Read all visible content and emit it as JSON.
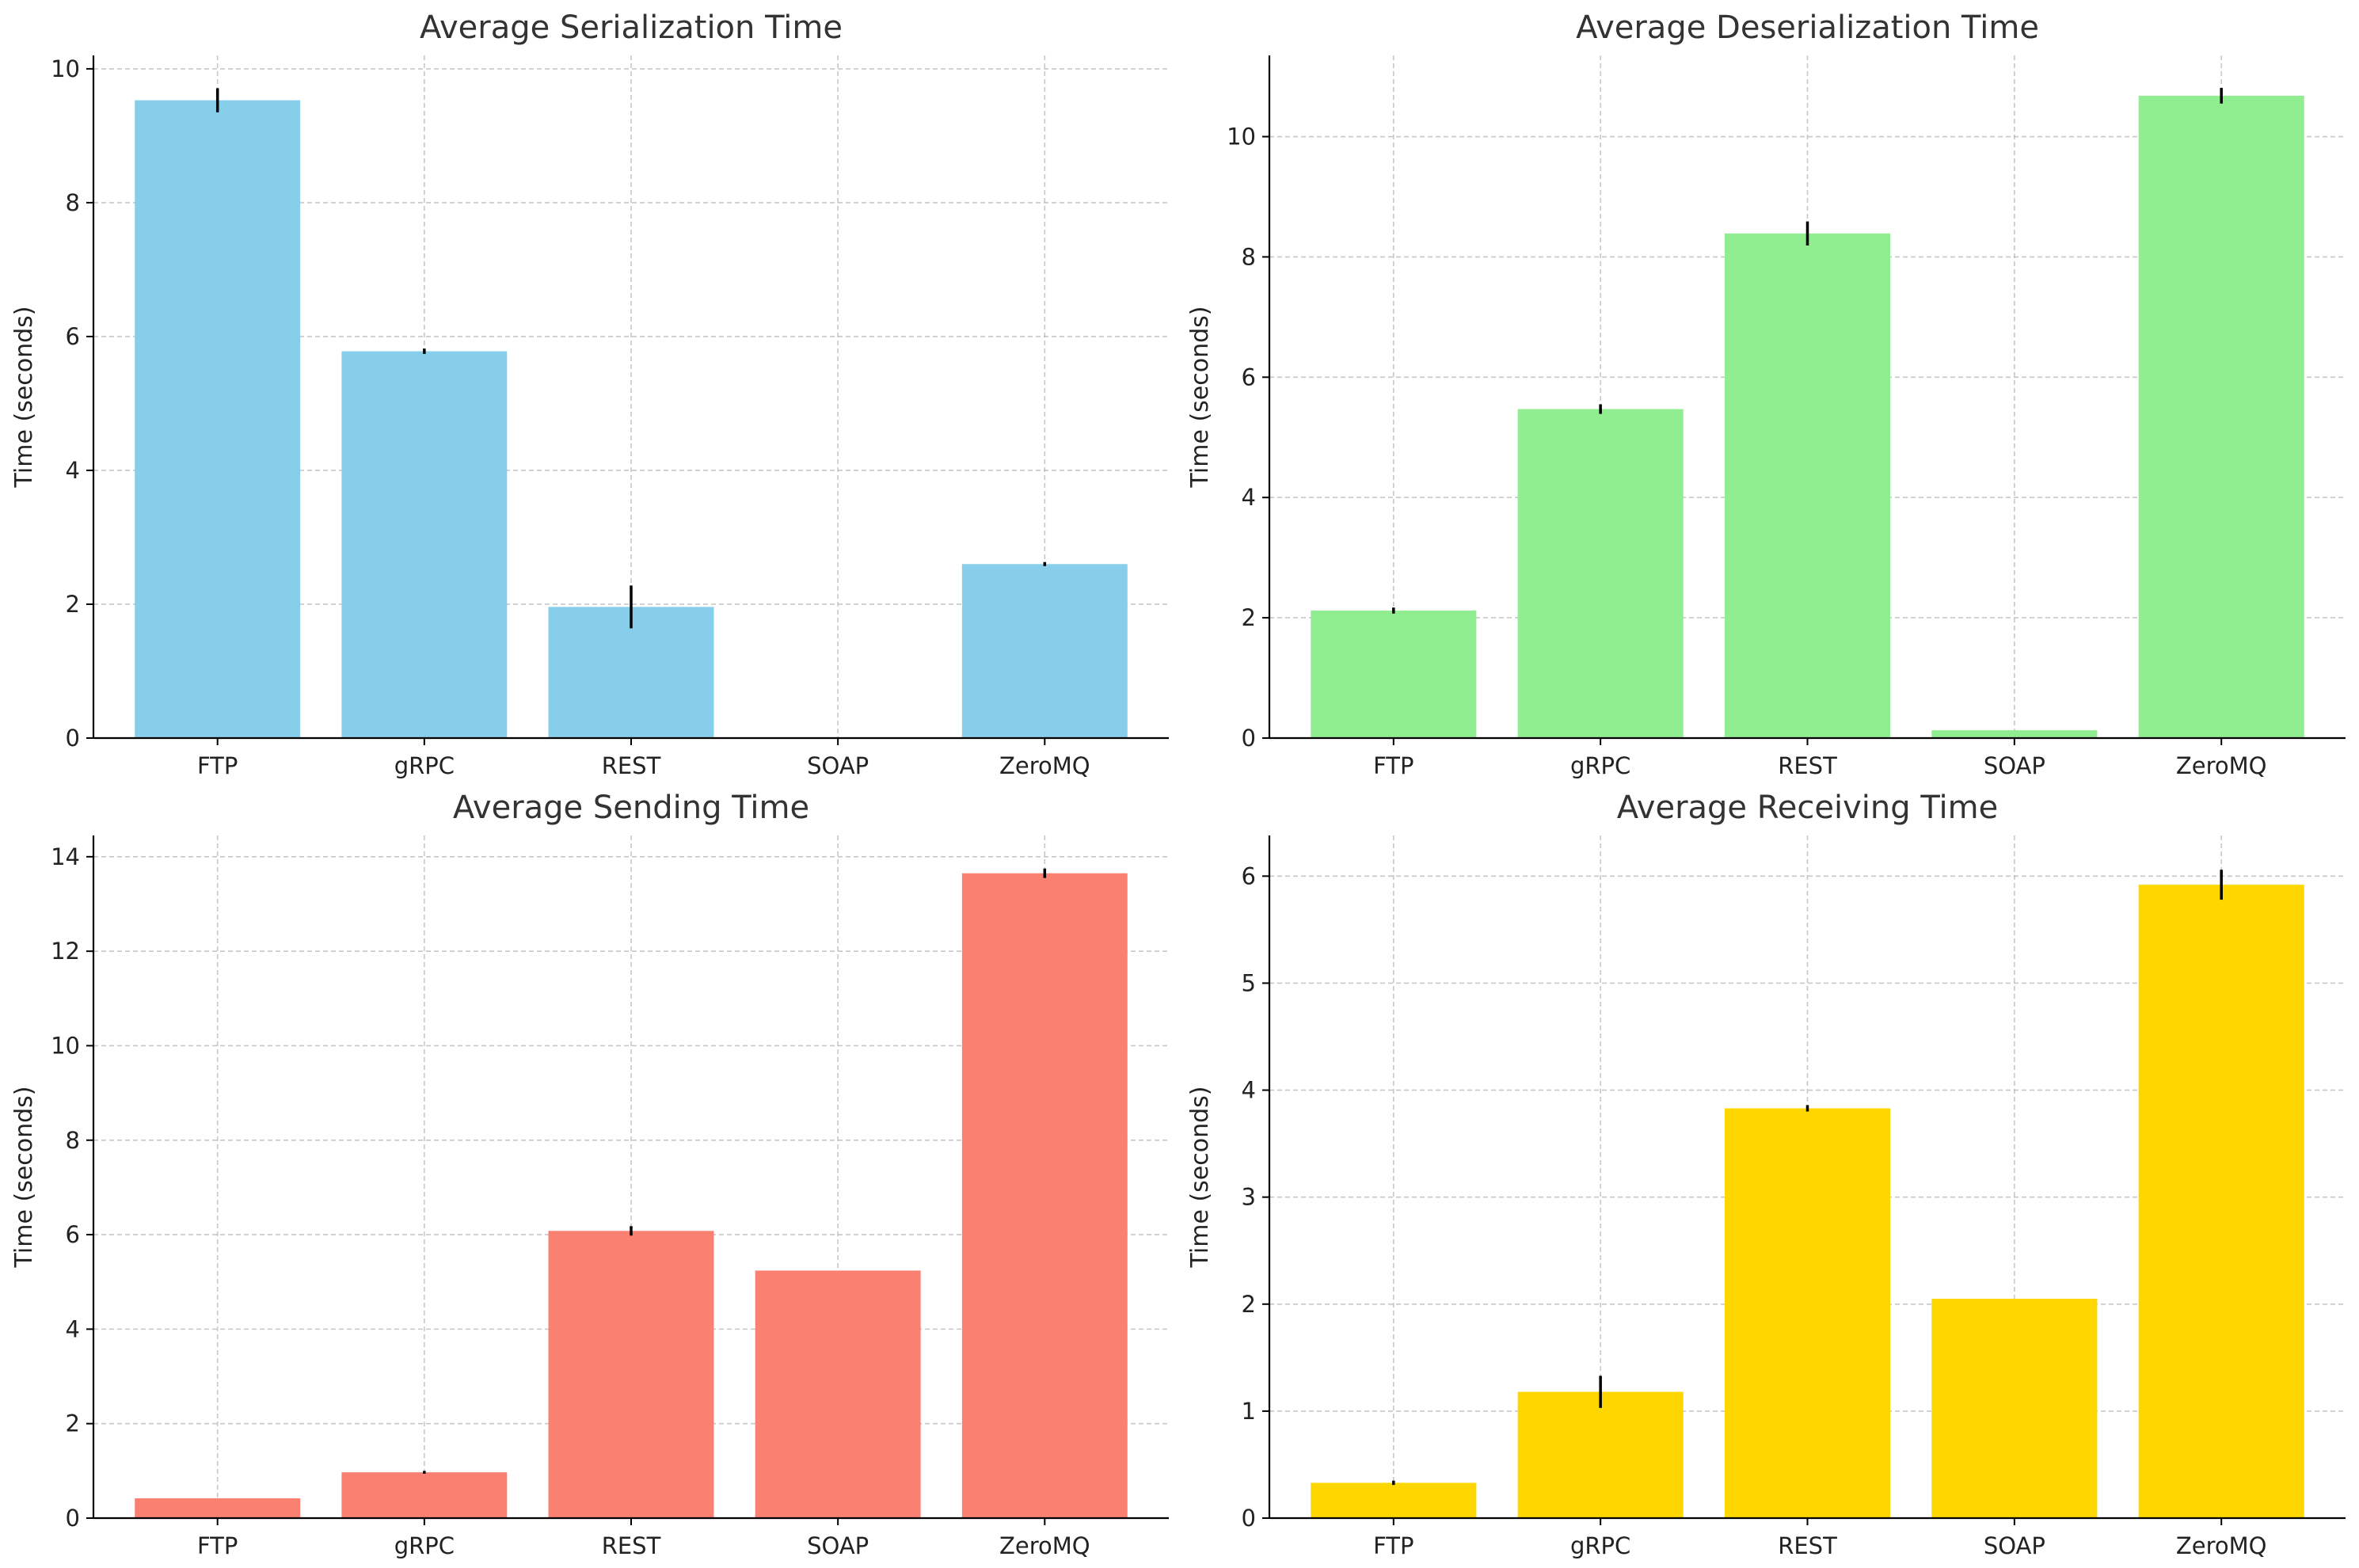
{
  "chart_data": [
    {
      "type": "bar",
      "title": "Average Serialization Time",
      "xlabel": "",
      "ylabel": "Time (seconds)",
      "categories": [
        "FTP",
        "gRPC",
        "REST",
        "SOAP",
        "ZeroMQ"
      ],
      "values": [
        9.53,
        5.78,
        1.96,
        0.0,
        2.6
      ],
      "errors": [
        0.18,
        0.04,
        0.32,
        0.0,
        0.03
      ],
      "ylim": [
        0,
        10.2
      ],
      "yticks": [
        0,
        2,
        4,
        6,
        8,
        10
      ],
      "color": "#87CEEB",
      "grid": true
    },
    {
      "type": "bar",
      "title": "Average Deserialization Time",
      "xlabel": "",
      "ylabel": "Time (seconds)",
      "categories": [
        "FTP",
        "gRPC",
        "REST",
        "SOAP",
        "ZeroMQ"
      ],
      "values": [
        2.12,
        5.47,
        8.39,
        0.13,
        10.68
      ],
      "errors": [
        0.05,
        0.08,
        0.2,
        0.0,
        0.13
      ],
      "ylim": [
        0,
        11.35
      ],
      "yticks": [
        0,
        2,
        4,
        6,
        8,
        10
      ],
      "color": "#90EE90",
      "grid": true
    },
    {
      "type": "bar",
      "title": "Average Sending Time",
      "xlabel": "",
      "ylabel": "Time (seconds)",
      "categories": [
        "FTP",
        "gRPC",
        "REST",
        "SOAP",
        "ZeroMQ"
      ],
      "values": [
        0.42,
        0.97,
        6.08,
        5.24,
        13.65
      ],
      "errors": [
        0.0,
        0.03,
        0.1,
        0.0,
        0.1
      ],
      "ylim": [
        0,
        14.45
      ],
      "yticks": [
        0,
        2,
        4,
        6,
        8,
        10,
        12,
        14
      ],
      "color": "#FA8072",
      "grid": true
    },
    {
      "type": "bar",
      "title": "Average Receiving Time",
      "xlabel": "",
      "ylabel": "Time (seconds)",
      "categories": [
        "FTP",
        "gRPC",
        "REST",
        "SOAP",
        "ZeroMQ"
      ],
      "values": [
        0.33,
        1.18,
        3.83,
        2.05,
        5.92
      ],
      "errors": [
        0.02,
        0.15,
        0.03,
        0.0,
        0.14
      ],
      "ylim": [
        0,
        6.38
      ],
      "yticks": [
        0,
        1,
        2,
        3,
        4,
        5,
        6
      ],
      "color": "#FFD700",
      "grid": true
    }
  ]
}
